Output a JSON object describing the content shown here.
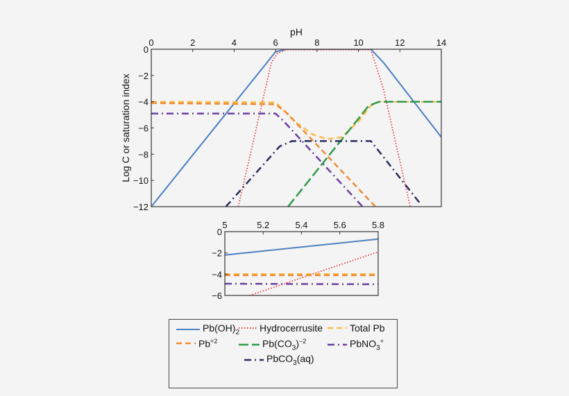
{
  "chart_data": [
    {
      "type": "line",
      "title": "",
      "xlabel": "pH",
      "ylabel": "Log C or saturation index",
      "xlim": [
        0,
        14
      ],
      "ylim": [
        -12,
        0
      ],
      "x_ticks": [
        "0",
        "2",
        "4",
        "6",
        "8",
        "10",
        "12",
        "14"
      ],
      "y_ticks": [
        "0",
        "−2",
        "−4",
        "−6",
        "−8",
        "−10",
        "−12"
      ],
      "x_axis_position": "top",
      "grid": false,
      "series": [
        {
          "name": "Pb(OH)2",
          "color": "#4a7fc1",
          "style": "solid",
          "points": [
            [
              0,
              -12
            ],
            [
              6,
              -0.2
            ],
            [
              6.5,
              0
            ],
            [
              10.6,
              0
            ],
            [
              11.2,
              -1
            ],
            [
              14,
              -6.7
            ]
          ]
        },
        {
          "name": "Hydrocerrusite",
          "color": "#e8383d",
          "style": "dotted",
          "points": [
            [
              4.2,
              -12
            ],
            [
              5.8,
              -1
            ],
            [
              6.1,
              -0.3
            ],
            [
              6.5,
              -0.05
            ],
            [
              10.6,
              -0.05
            ],
            [
              11.2,
              -3
            ],
            [
              12.5,
              -12
            ]
          ]
        },
        {
          "name": "Total Pb",
          "color": "#f6bd4a",
          "style": "dashed",
          "points": [
            [
              0,
              -4
            ],
            [
              6,
              -4.05
            ],
            [
              7,
              -5.6
            ],
            [
              7.8,
              -6.5
            ],
            [
              8.5,
              -6.85
            ],
            [
              9.2,
              -6.7
            ],
            [
              10,
              -5.5
            ],
            [
              10.6,
              -4.3
            ],
            [
              11,
              -4
            ],
            [
              14,
              -4
            ]
          ]
        },
        {
          "name": "Pb+2",
          "color": "#ef8a32",
          "style": "dashed",
          "points": [
            [
              0,
              -4.1
            ],
            [
              6,
              -4.2
            ],
            [
              6.5,
              -4.8
            ],
            [
              11,
              -12.3
            ]
          ]
        },
        {
          "name": "Pb(CO3)-2",
          "color": "#2f9a48",
          "style": "dashed",
          "points": [
            [
              6.6,
              -12
            ],
            [
              10.5,
              -4.3
            ],
            [
              11,
              -4
            ],
            [
              14,
              -4
            ]
          ]
        },
        {
          "name": "PbNO3+",
          "color": "#6a3fa0",
          "style": "dashdot",
          "points": [
            [
              0,
              -4.9
            ],
            [
              6,
              -4.9
            ],
            [
              6.4,
              -5.5
            ],
            [
              10.2,
              -12
            ]
          ]
        },
        {
          "name": "PbCO3(aq)",
          "color": "#2a2a5c",
          "style": "dashdot",
          "points": [
            [
              3.6,
              -12
            ],
            [
              6.2,
              -7.4
            ],
            [
              6.8,
              -7
            ],
            [
              10.6,
              -7
            ],
            [
              13,
              -11.8
            ]
          ]
        }
      ]
    },
    {
      "type": "line",
      "title": "",
      "xlabel": "",
      "ylabel": "",
      "xlim": [
        5,
        5.8
      ],
      "ylim": [
        -6,
        0
      ],
      "x_ticks": [
        "5",
        "5.2",
        "5.4",
        "5.6",
        "5.8"
      ],
      "y_ticks": [
        "0",
        "−2",
        "−4",
        "−6"
      ],
      "x_axis_position": "top",
      "grid": false,
      "series": [
        {
          "name": "Pb(OH)2",
          "color": "#4a7fc1",
          "style": "solid",
          "points": [
            [
              5,
              -2.2
            ],
            [
              5.8,
              -0.7
            ]
          ]
        },
        {
          "name": "Hydrocerrusite",
          "color": "#e8383d",
          "style": "dotted",
          "points": [
            [
              5.13,
              -6
            ],
            [
              5.8,
              -1.9
            ]
          ]
        },
        {
          "name": "Total Pb",
          "color": "#f6bd4a",
          "style": "dashed",
          "points": [
            [
              5,
              -4.0
            ],
            [
              5.8,
              -4.0
            ]
          ]
        },
        {
          "name": "Pb+2",
          "color": "#ef8a32",
          "style": "dashed",
          "points": [
            [
              5,
              -4.1
            ],
            [
              5.8,
              -4.1
            ]
          ]
        },
        {
          "name": "PbNO3+",
          "color": "#6a3fa0",
          "style": "dashdot",
          "points": [
            [
              5,
              -4.9
            ],
            [
              5.8,
              -4.95
            ]
          ]
        }
      ]
    }
  ],
  "axes": {
    "main": {
      "xlabel": "pH",
      "ylabel": "Log C or saturation index"
    }
  },
  "legend": {
    "items": [
      {
        "label": "Pb(OH)",
        "sub": "2",
        "sup": "",
        "tail": "",
        "color": "#4a7fc1",
        "style": "solid"
      },
      {
        "label": "Hydrocerrusite",
        "sub": "",
        "sup": "",
        "tail": "",
        "color": "#e8383d",
        "style": "dotted"
      },
      {
        "label": "Total Pb",
        "sub": "",
        "sup": "",
        "tail": "",
        "color": "#f6bd4a",
        "style": "dashed"
      },
      {
        "label": "Pb",
        "sub": "",
        "sup": "+2",
        "tail": "",
        "color": "#ef8a32",
        "style": "dashed"
      },
      {
        "label": "Pb(CO",
        "sub": "3",
        "sup": "−2",
        "tail": ")",
        "color": "#2f9a48",
        "style": "dashed"
      },
      {
        "label": "PbNO",
        "sub": "3",
        "sup": "+",
        "tail": "",
        "color": "#6a3fa0",
        "style": "dashdot"
      },
      {
        "label": "PbCO",
        "sub": "3",
        "sup": "",
        "tail": "(aq)",
        "color": "#2a2a5c",
        "style": "dashdot"
      }
    ]
  }
}
